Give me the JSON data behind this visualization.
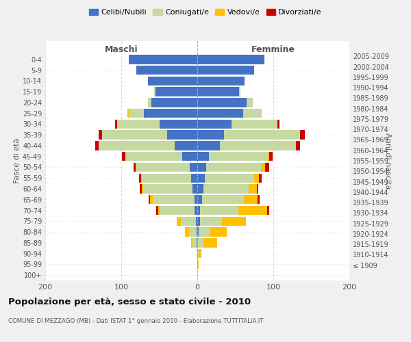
{
  "age_groups": [
    "100+",
    "95-99",
    "90-94",
    "85-89",
    "80-84",
    "75-79",
    "70-74",
    "65-69",
    "60-64",
    "55-59",
    "50-54",
    "45-49",
    "40-44",
    "35-39",
    "30-34",
    "25-29",
    "20-24",
    "15-19",
    "10-14",
    "5-9",
    "0-4"
  ],
  "birth_years": [
    "≤ 1909",
    "1910-1914",
    "1915-1919",
    "1920-1924",
    "1925-1929",
    "1930-1934",
    "1935-1939",
    "1940-1944",
    "1945-1949",
    "1950-1954",
    "1955-1959",
    "1960-1964",
    "1965-1969",
    "1970-1974",
    "1975-1979",
    "1980-1984",
    "1985-1989",
    "1990-1994",
    "1995-1999",
    "2000-2004",
    "2005-2009"
  ],
  "males": {
    "celibi": [
      0,
      0,
      0,
      1,
      1,
      2,
      4,
      4,
      6,
      8,
      10,
      20,
      30,
      40,
      50,
      70,
      60,
      55,
      65,
      80,
      90
    ],
    "coniugati": [
      0,
      0,
      1,
      5,
      10,
      20,
      45,
      55,
      65,
      65,
      70,
      75,
      100,
      85,
      55,
      20,
      5,
      2,
      0,
      0,
      0
    ],
    "vedovi": [
      0,
      0,
      0,
      2,
      5,
      5,
      2,
      3,
      2,
      1,
      1,
      0,
      0,
      0,
      0,
      2,
      0,
      0,
      0,
      0,
      0
    ],
    "divorziati": [
      0,
      0,
      0,
      0,
      0,
      0,
      3,
      2,
      3,
      3,
      3,
      4,
      4,
      5,
      3,
      0,
      0,
      0,
      0,
      0,
      0
    ]
  },
  "females": {
    "nubili": [
      0,
      0,
      0,
      0,
      2,
      4,
      4,
      6,
      8,
      10,
      12,
      15,
      30,
      35,
      45,
      60,
      65,
      55,
      62,
      75,
      88
    ],
    "coniugate": [
      0,
      1,
      2,
      8,
      15,
      28,
      50,
      55,
      60,
      65,
      72,
      78,
      100,
      100,
      60,
      25,
      8,
      2,
      0,
      0,
      0
    ],
    "vedove": [
      0,
      1,
      3,
      18,
      22,
      32,
      38,
      18,
      10,
      6,
      5,
      2,
      0,
      0,
      0,
      0,
      0,
      0,
      0,
      0,
      0
    ],
    "divorziate": [
      0,
      0,
      0,
      0,
      0,
      0,
      3,
      3,
      2,
      4,
      6,
      4,
      5,
      6,
      3,
      0,
      0,
      0,
      0,
      0,
      0
    ]
  },
  "colors": {
    "celibi": "#4472c4",
    "coniugati": "#c5d9a0",
    "vedovi": "#ffc000",
    "divorziati": "#cc0000"
  },
  "xlim": [
    -200,
    200
  ],
  "xticks": [
    -200,
    -100,
    0,
    100,
    200
  ],
  "xticklabels": [
    "200",
    "100",
    "0",
    "100",
    "200"
  ],
  "title": "Popolazione per età, sesso e stato civile - 2010",
  "subtitle": "COMUNE DI MEZZAGO (MB) - Dati ISTAT 1° gennaio 2010 - Elaborazione TUTTITALIA.IT",
  "ylabel_left": "Fasce di età",
  "ylabel_right": "Anni di nascita",
  "legend_labels": [
    "Celibi/Nubili",
    "Coniugati/e",
    "Vedovi/e",
    "Divorziati/e"
  ],
  "maschi_label": "Maschi",
  "femmine_label": "Femmine",
  "bg_color": "#f0f0f0",
  "plot_bg_color": "#ffffff"
}
